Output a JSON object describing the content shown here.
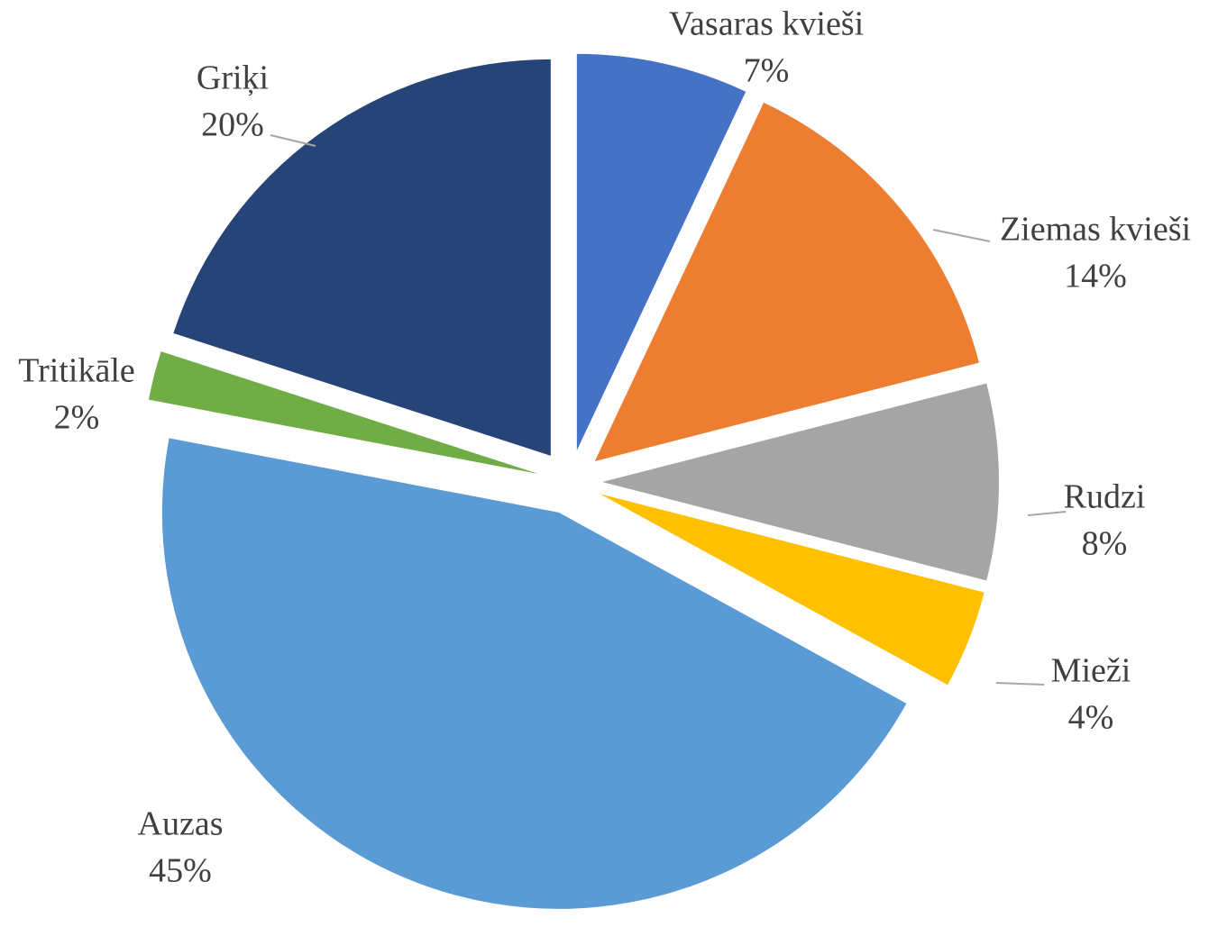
{
  "chart_data": {
    "type": "pie",
    "categories": [
      "Vasaras kvieši",
      "Ziemas kvieši",
      "Rudzi",
      "Mieži",
      "Auzas",
      "Tritikāle",
      "Griķi"
    ],
    "values": [
      7,
      14,
      8,
      4,
      45,
      2,
      20
    ],
    "value_labels": [
      "7%",
      "14%",
      "8%",
      "4%",
      "45%",
      "2%",
      "20%"
    ],
    "colors": [
      "#4472c4",
      "#ed7d31",
      "#a5a5a5",
      "#ffc000",
      "#5b9bd5",
      "#70ad47",
      "#264478"
    ]
  }
}
